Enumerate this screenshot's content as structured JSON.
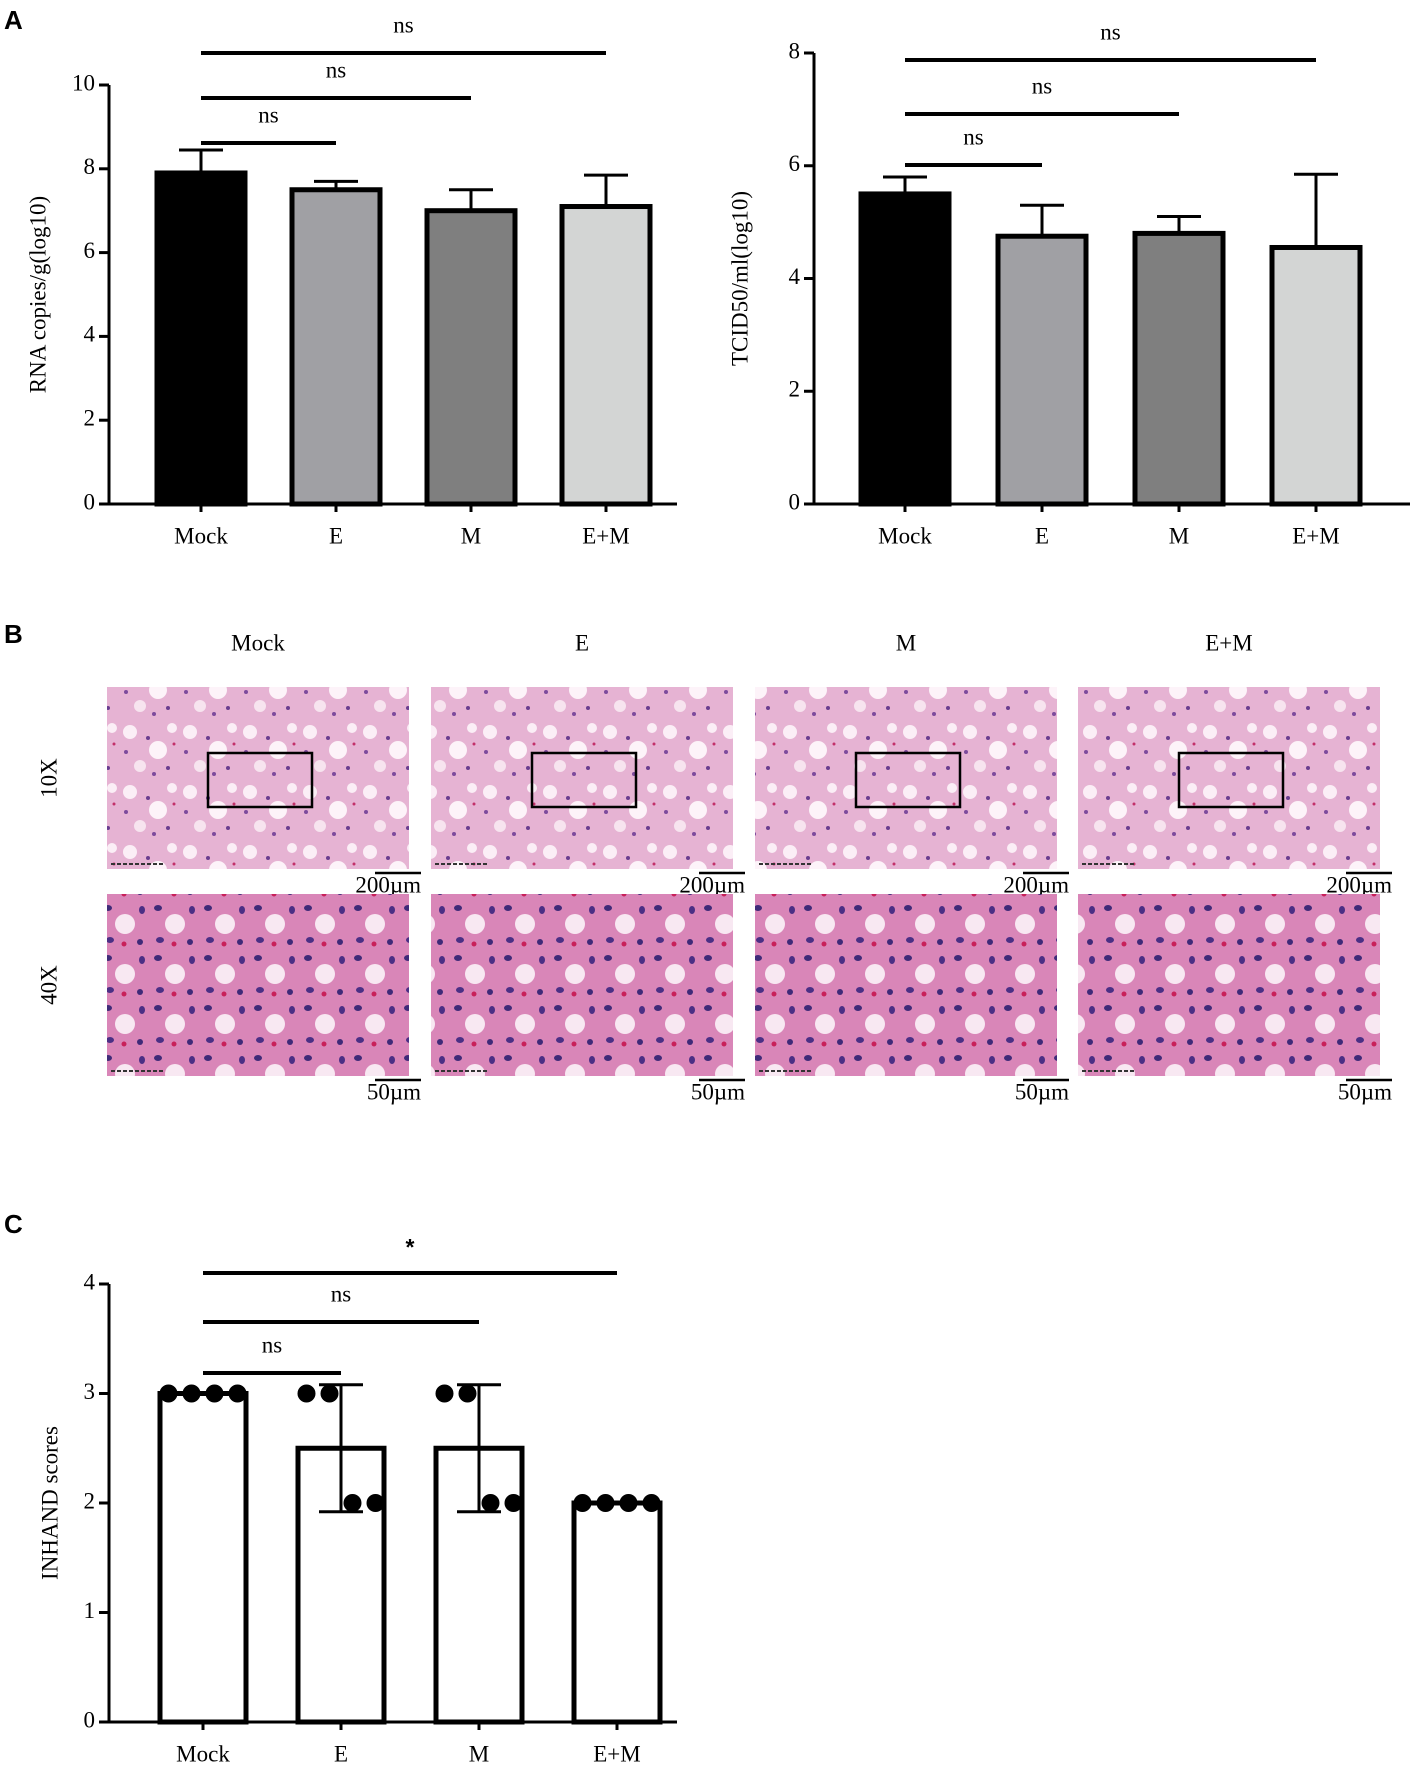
{
  "panel_labels": [
    "A",
    "B",
    "C"
  ],
  "chart_data": [
    {
      "type": "bar",
      "ylabel": "RNA copies/g(log10)",
      "categories": [
        "Mock",
        "E",
        "M",
        "E+M"
      ],
      "values": [
        7.9,
        7.5,
        7.0,
        7.1
      ],
      "errors": [
        0.55,
        0.2,
        0.5,
        0.75
      ],
      "error_direction": "up",
      "colors": [
        "#000000",
        "#a0a0a4",
        "#7f7f7f",
        "#d3d5d4"
      ],
      "ylim": [
        0,
        10
      ],
      "yticks": [
        0,
        2,
        4,
        6,
        8,
        10
      ],
      "comparisons": [
        {
          "groups": [
            "Mock",
            "E"
          ],
          "label": "ns"
        },
        {
          "groups": [
            "Mock",
            "M"
          ],
          "label": "ns"
        },
        {
          "groups": [
            "Mock",
            "E+M"
          ],
          "label": "ns"
        }
      ]
    },
    {
      "type": "bar",
      "ylabel": "TCID50/ml(log10)",
      "categories": [
        "Mock",
        "E",
        "M",
        "E+M"
      ],
      "values": [
        5.5,
        4.75,
        4.8,
        4.55
      ],
      "errors": [
        0.3,
        0.55,
        0.3,
        1.3
      ],
      "error_direction": "up",
      "colors": [
        "#000000",
        "#a0a0a4",
        "#7f7f7f",
        "#d3d5d4"
      ],
      "ylim": [
        0,
        8
      ],
      "yticks": [
        0,
        2,
        4,
        6,
        8
      ],
      "comparisons": [
        {
          "groups": [
            "Mock",
            "E"
          ],
          "label": "ns"
        },
        {
          "groups": [
            "Mock",
            "M"
          ],
          "label": "ns"
        },
        {
          "groups": [
            "Mock",
            "E+M"
          ],
          "label": "ns"
        }
      ]
    },
    {
      "type": "bar",
      "ylabel": "INHAND scores",
      "categories": [
        "Mock",
        "E",
        "M",
        "E+M"
      ],
      "values": [
        3,
        2.5,
        2.5,
        2
      ],
      "errors": [
        0,
        0.58,
        0.58,
        0
      ],
      "error_direction": "both",
      "colors": [
        "#ffffff",
        "#ffffff",
        "#ffffff",
        "#ffffff"
      ],
      "points": [
        [
          3,
          3,
          3,
          3
        ],
        [
          3,
          3,
          2,
          2
        ],
        [
          3,
          3,
          2,
          2
        ],
        [
          2,
          2,
          2,
          2
        ]
      ],
      "ylim": [
        0,
        4
      ],
      "yticks": [
        0,
        1,
        2,
        3,
        4
      ],
      "comparisons": [
        {
          "groups": [
            "Mock",
            "E"
          ],
          "label": "ns"
        },
        {
          "groups": [
            "Mock",
            "M"
          ],
          "label": "ns"
        },
        {
          "groups": [
            "Mock",
            "E+M"
          ],
          "label": "*"
        }
      ]
    }
  ],
  "histology": {
    "groups": [
      "Mock",
      "E",
      "M",
      "E+M"
    ],
    "magnifications": [
      "10X",
      "40X"
    ],
    "scale_bars": [
      "200µm",
      "50µm"
    ]
  }
}
